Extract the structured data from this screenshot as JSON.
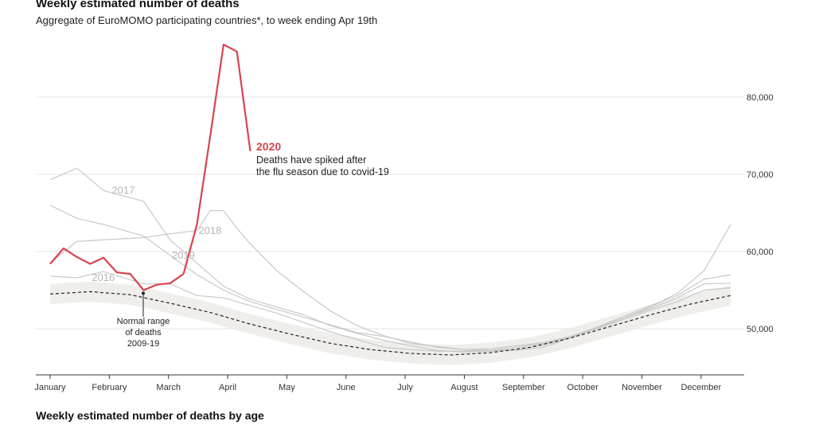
{
  "header": {
    "title": "Weekly estimated number of deaths",
    "subtitle": "Aggregate of EuroMOMO participating countries*, to week ending Apr 19th"
  },
  "footer": {
    "next_chart_title": "Weekly estimated number of deaths by age"
  },
  "colors": {
    "highlight": "#d9434f",
    "past_years": "#c8c8c8",
    "normal_band": "#ecebe6",
    "baseline": "#222222"
  },
  "chart_data": {
    "type": "line",
    "x_unit": "week",
    "month_labels": [
      "January",
      "February",
      "March",
      "April",
      "May",
      "June",
      "July",
      "August",
      "September",
      "October",
      "November",
      "December"
    ],
    "ylim": [
      44000,
      88000
    ],
    "yticks": [
      50000,
      60000,
      70000,
      80000
    ],
    "ytick_labels": [
      "50,000",
      "60,000",
      "70,000",
      "80,000"
    ],
    "grid": true,
    "series": [
      {
        "name": "2017",
        "color": "#c8c8c8",
        "label_at_week": 5.5,
        "x": [
          1,
          3,
          5,
          8,
          10,
          12,
          14,
          16,
          18,
          20,
          22,
          24,
          26,
          28,
          30,
          32,
          34,
          36,
          38,
          40,
          42,
          44,
          46,
          48,
          50,
          52
        ],
        "values": [
          69300,
          70800,
          67900,
          66500,
          61500,
          58500,
          55500,
          53800,
          52800,
          51800,
          50400,
          49400,
          48500,
          47800,
          47200,
          47000,
          47100,
          47300,
          47900,
          48800,
          50100,
          51400,
          52800,
          54600,
          57500,
          63500
        ]
      },
      {
        "name": "2018",
        "color": "#c8c8c8",
        "label_at_week": 12,
        "x": [
          1,
          3,
          5,
          8,
          10,
          12,
          13,
          14,
          15,
          16,
          18,
          20,
          22,
          24,
          26,
          28,
          30,
          32,
          34,
          36,
          38,
          40,
          42,
          44,
          46,
          48,
          50,
          52
        ],
        "values": [
          58500,
          61300,
          61500,
          61800,
          62300,
          62700,
          65300,
          65300,
          63000,
          61000,
          57500,
          54800,
          52300,
          50400,
          49100,
          48100,
          47700,
          47300,
          47200,
          47200,
          47600,
          48800,
          50200,
          51600,
          53000,
          54300,
          56400,
          57000
        ]
      },
      {
        "name": "2019",
        "color": "#c8c8c8",
        "label_at_week": 10,
        "x": [
          1,
          3,
          5,
          8,
          10,
          12,
          14,
          16,
          18,
          20,
          22,
          24,
          26,
          28,
          30,
          32,
          34,
          36,
          38,
          40,
          42,
          44,
          46,
          48,
          50,
          52
        ],
        "values": [
          66000,
          64300,
          63500,
          62000,
          59500,
          57000,
          55000,
          53500,
          52500,
          51500,
          50500,
          49500,
          49000,
          48300,
          47600,
          47300,
          47400,
          47800,
          48200,
          49000,
          50200,
          51400,
          52600,
          54000,
          55800,
          55900
        ]
      },
      {
        "name": "2016",
        "color": "#c8c8c8",
        "label_at_week": 4,
        "x": [
          1,
          3,
          5,
          8,
          10,
          12,
          14,
          16,
          18,
          20,
          22,
          24,
          26,
          28,
          30,
          32,
          34,
          36,
          38,
          40,
          42,
          44,
          46,
          48,
          50,
          52
        ],
        "values": [
          56800,
          56600,
          57400,
          55800,
          55800,
          54300,
          54000,
          53000,
          52000,
          50800,
          49600,
          48600,
          47600,
          47300,
          47100,
          47100,
          47200,
          47600,
          48100,
          49000,
          50000,
          51200,
          52400,
          53500,
          55000,
          55300
        ]
      },
      {
        "name": "2020",
        "color": "#d9434f",
        "label_at_week": 16,
        "x": [
          1,
          2,
          3,
          4,
          5,
          6,
          7,
          8,
          9,
          10,
          11,
          12,
          13,
          14,
          15,
          16
        ],
        "values": [
          58400,
          60400,
          59300,
          58400,
          59200,
          57300,
          57100,
          55000,
          55700,
          55900,
          57100,
          63500,
          75000,
          86800,
          85900,
          73000
        ]
      }
    ],
    "baseline": {
      "name": "Normal range of deaths 2009-19",
      "x": [
        1,
        4,
        7,
        10,
        13,
        16,
        19,
        22,
        25,
        28,
        31,
        34,
        37,
        40,
        43,
        46,
        49,
        52
      ],
      "values": [
        54500,
        54800,
        54400,
        53300,
        52100,
        50600,
        49300,
        48100,
        47300,
        46800,
        46600,
        46900,
        47600,
        48800,
        50300,
        51800,
        53200,
        54300
      ],
      "band_halfwidth": 1300
    },
    "annotations": {
      "headline": "2020",
      "line1": "Deaths have spiked after",
      "line2": "the flu season due to covid-19",
      "normal_line1": "Normal range",
      "normal_line2": "of deaths",
      "normal_line3": "2009-19"
    }
  }
}
